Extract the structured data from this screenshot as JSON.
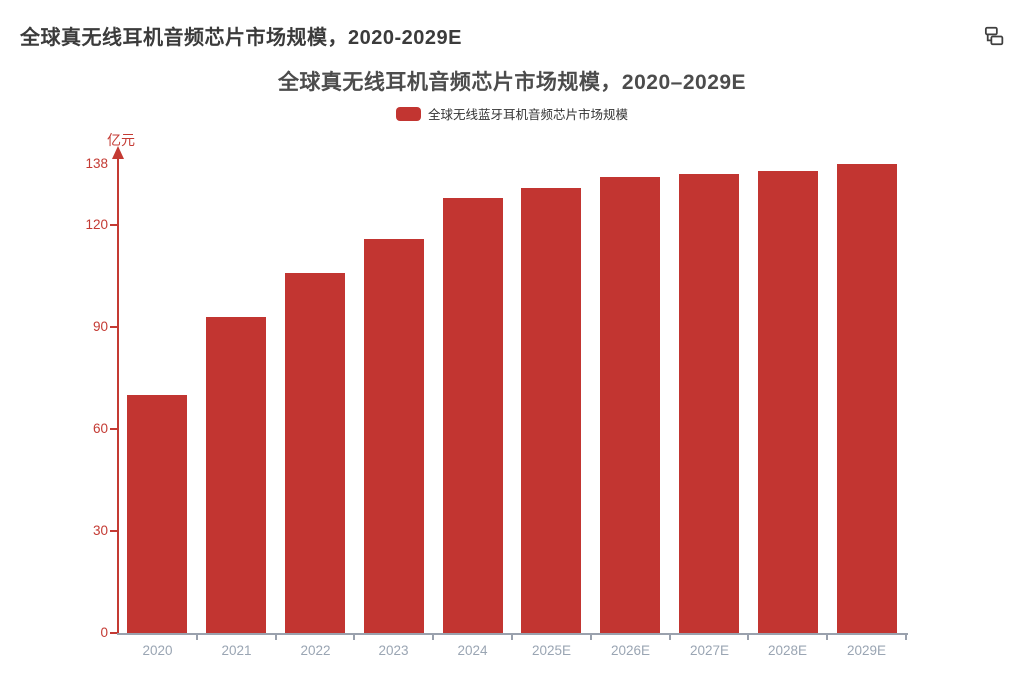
{
  "page": {
    "title": "全球真无线耳机音频芯片市场规模，2020-2029E",
    "icons": {
      "corner": "linked-nodes-icon"
    }
  },
  "chart_data": {
    "type": "bar",
    "title": "全球真无线耳机音频芯片市场规模，2020–2029E",
    "legend_label": "全球无线蓝牙耳机音频芯片市场规模",
    "legend_position": "top-center",
    "unit_label": "亿元",
    "xlabel": "",
    "ylabel": "亿元",
    "categories": [
      "2020",
      "2021",
      "2022",
      "2023",
      "2024",
      "2025E",
      "2026E",
      "2027E",
      "2028E",
      "2029E"
    ],
    "values": [
      70,
      93,
      106,
      116,
      128,
      131,
      134,
      135,
      136,
      138
    ],
    "yticks": [
      0,
      30,
      60,
      90,
      120,
      138
    ],
    "ylim": [
      0,
      138
    ],
    "grid": false,
    "colors": {
      "bar": "#c23531",
      "axis_red": "#c43a33",
      "x_axis_line": "#9aa1ad",
      "x_label": "#9aa5b3",
      "chart_title": "#4c4c4c",
      "page_title": "#3b3b3b",
      "legend_text": "#333333"
    }
  }
}
